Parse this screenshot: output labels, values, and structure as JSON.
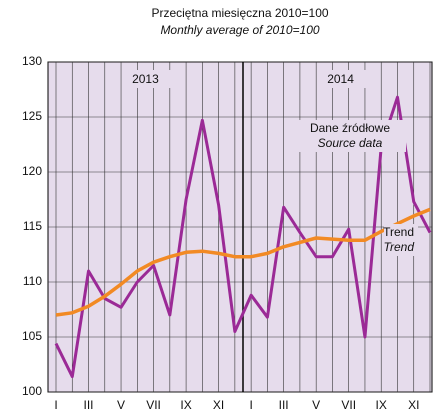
{
  "chart_data": {
    "type": "line",
    "title": "Przeciętna miesięczna 2010=100",
    "subtitle": "Monthly average of 2010=100",
    "categories": [
      "I",
      null,
      "III",
      null,
      "V",
      null,
      "VII",
      null,
      "IX",
      null,
      "XI",
      null,
      "I",
      null,
      "III",
      null,
      "V",
      null,
      "VII",
      null,
      "IX",
      null,
      "XI",
      null
    ],
    "year_labels": [
      "2013",
      "2014"
    ],
    "series": [
      {
        "name": "Dane źródłowe",
        "name_en": "Source data",
        "color": "#9b2a96",
        "values": [
          104.4,
          101.4,
          111,
          108.5,
          107.7,
          110,
          111.5,
          107,
          117.5,
          124.7,
          117,
          105.5,
          108.8,
          106.8,
          116.8,
          114.5,
          112.3,
          112.3,
          114.8,
          105,
          122.3,
          126.8,
          117.3,
          114.5
        ]
      },
      {
        "name": "Trend",
        "name_en": "Trend",
        "color": "#f28a24",
        "values": [
          107,
          107.2,
          107.8,
          108.7,
          109.8,
          111,
          111.8,
          112.3,
          112.7,
          112.8,
          112.6,
          112.3,
          112.3,
          112.6,
          113.2,
          113.6,
          114,
          113.9,
          113.8,
          113.8,
          114.6,
          115.3,
          116,
          116.6
        ]
      }
    ],
    "ylim": [
      100,
      130
    ],
    "yticks": [
      100,
      105,
      110,
      115,
      120,
      125,
      130
    ],
    "grid": true,
    "background": "#e6dcec"
  }
}
